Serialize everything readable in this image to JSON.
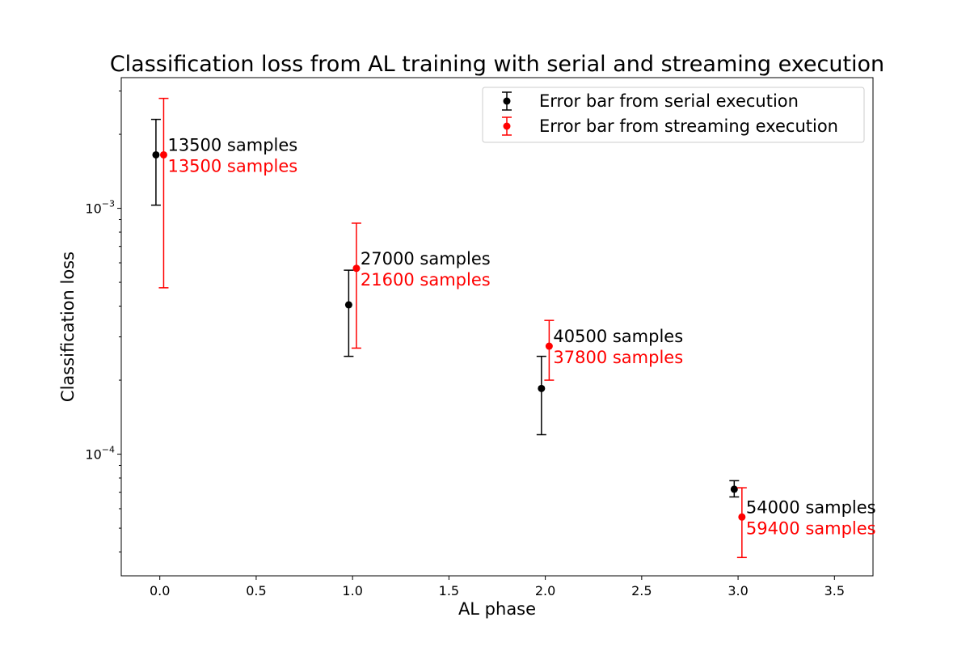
{
  "chart_data": {
    "type": "scatter",
    "title": "Classification loss from AL training with serial and streaming execution",
    "xlabel": "AL phase",
    "ylabel": "Classification loss",
    "xlim": [
      -0.2,
      3.7
    ],
    "ylim": [
      3.2e-05,
      0.0034
    ],
    "yscale": "log",
    "xticks": [
      0.0,
      0.5,
      1.0,
      1.5,
      2.0,
      2.5,
      3.0,
      3.5
    ],
    "xtick_labels": [
      "0.0",
      "0.5",
      "1.0",
      "1.5",
      "2.0",
      "2.5",
      "3.0",
      "3.5"
    ],
    "yticks_major": [
      {
        "value": 0.001,
        "base": "10",
        "exp": "−3"
      },
      {
        "value": 0.0001,
        "base": "10",
        "exp": "−4"
      }
    ],
    "grid": false,
    "legend_position": "upper-right",
    "series": [
      {
        "name": "Error bar from serial execution",
        "color": "#000000",
        "points": [
          {
            "x": -0.02,
            "y": 0.00165,
            "ylow": 0.00103,
            "yhigh": 0.0023,
            "label": "13500 samples"
          },
          {
            "x": 0.98,
            "y": 0.000405,
            "ylow": 0.00025,
            "yhigh": 0.00056,
            "label": "27000 samples"
          },
          {
            "x": 1.98,
            "y": 0.000185,
            "ylow": 0.00012,
            "yhigh": 0.00025,
            "label": "40500 samples"
          },
          {
            "x": 2.98,
            "y": 7.2e-05,
            "ylow": 6.7e-05,
            "yhigh": 7.8e-05,
            "label": "54000 samples"
          }
        ]
      },
      {
        "name": "Error bar from streaming execution",
        "color": "#ff0000",
        "points": [
          {
            "x": 0.02,
            "y": 0.00165,
            "ylow": 0.000475,
            "yhigh": 0.0028,
            "label": "13500 samples"
          },
          {
            "x": 1.02,
            "y": 0.00057,
            "ylow": 0.00027,
            "yhigh": 0.00087,
            "label": "21600 samples"
          },
          {
            "x": 2.02,
            "y": 0.000275,
            "ylow": 0.0002,
            "yhigh": 0.00035,
            "label": "37800 samples"
          },
          {
            "x": 3.02,
            "y": 5.55e-05,
            "ylow": 3.8e-05,
            "yhigh": 7.3e-05,
            "label": "59400 samples"
          }
        ]
      }
    ]
  }
}
